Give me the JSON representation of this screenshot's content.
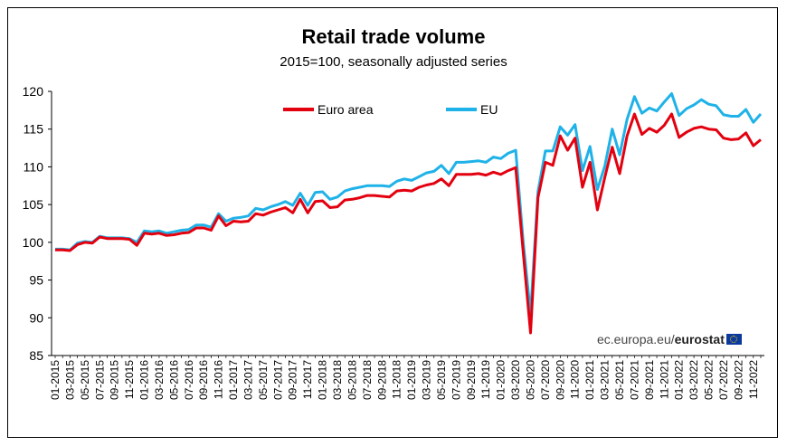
{
  "chart_data": {
    "type": "line",
    "title": "Retail trade volume",
    "subtitle": "2015=100, seasonally adjusted series",
    "ylim": [
      85,
      120
    ],
    "yticks": [
      85,
      90,
      95,
      100,
      105,
      110,
      115,
      120
    ],
    "xlabel": "",
    "ylabel": "",
    "grid": false,
    "legend": "top-center",
    "x_tick_labels": [
      "01-2015",
      "03-2015",
      "05-2015",
      "07-2015",
      "09-2015",
      "11-2015",
      "01-2016",
      "03-2016",
      "05-2016",
      "07-2016",
      "09-2016",
      "11-2016",
      "01-2017",
      "03-2017",
      "05-2017",
      "07-2017",
      "09-2017",
      "11-2017",
      "01-2018",
      "03-2018",
      "05-2018",
      "07-2018",
      "09-2018",
      "11-2018",
      "01-2019",
      "03-2019",
      "05-2019",
      "07-2019",
      "09-2019",
      "11-2019",
      "01-2020",
      "03-2020",
      "05-2020",
      "07-2020",
      "09-2020",
      "11-2020",
      "01-2021",
      "03-2021",
      "05-2021",
      "07-2021",
      "09-2021",
      "11-2021",
      "01-2022",
      "03-2022",
      "05-2022",
      "07-2022",
      "09-2022",
      "11-2022"
    ],
    "series": [
      {
        "name": "Euro area",
        "color": "#e3000f",
        "values": [
          99.0,
          99.0,
          98.9,
          99.7,
          100.0,
          99.9,
          100.7,
          100.5,
          100.5,
          100.5,
          100.4,
          99.6,
          101.2,
          101.1,
          101.2,
          100.9,
          101.0,
          101.2,
          101.3,
          101.9,
          101.9,
          101.6,
          103.5,
          102.2,
          102.8,
          102.7,
          102.8,
          103.8,
          103.6,
          104.0,
          104.3,
          104.6,
          103.9,
          105.7,
          103.9,
          105.4,
          105.5,
          104.6,
          104.7,
          105.6,
          105.7,
          105.9,
          106.2,
          106.2,
          106.1,
          106.0,
          106.8,
          106.9,
          106.8,
          107.3,
          107.6,
          107.8,
          108.4,
          107.5,
          109.0,
          109.0,
          109.0,
          109.1,
          108.9,
          109.3,
          109.0,
          109.5,
          109.9,
          98.8,
          88.0,
          105.9,
          110.6,
          110.2,
          114.1,
          112.2,
          113.8,
          107.3,
          110.6,
          104.3,
          108.6,
          112.6,
          109.1,
          114.1,
          117.0,
          114.3,
          115.1,
          114.6,
          115.5,
          117.0,
          113.9,
          114.6,
          115.1,
          115.3,
          115.0,
          114.9,
          113.8,
          113.6,
          113.7,
          114.5,
          112.8,
          113.6
        ]
      },
      {
        "name": "EU",
        "color": "#1fb2e8",
        "values": [
          99.1,
          99.1,
          99.0,
          99.9,
          100.1,
          100.0,
          100.8,
          100.6,
          100.6,
          100.6,
          100.5,
          100.0,
          101.5,
          101.4,
          101.5,
          101.2,
          101.4,
          101.6,
          101.7,
          102.3,
          102.3,
          102.0,
          103.8,
          102.8,
          103.2,
          103.3,
          103.5,
          104.5,
          104.3,
          104.7,
          105.0,
          105.4,
          104.9,
          106.5,
          104.9,
          106.6,
          106.7,
          105.7,
          106.0,
          106.8,
          107.1,
          107.3,
          107.5,
          107.5,
          107.5,
          107.4,
          108.1,
          108.4,
          108.2,
          108.7,
          109.2,
          109.4,
          110.2,
          109.1,
          110.6,
          110.6,
          110.7,
          110.8,
          110.6,
          111.3,
          111.1,
          111.8,
          112.2,
          100.2,
          90.5,
          106.7,
          112.1,
          112.1,
          115.3,
          114.2,
          115.6,
          109.5,
          112.7,
          107.0,
          110.1,
          115.0,
          111.6,
          116.3,
          119.3,
          117.1,
          117.8,
          117.4,
          118.6,
          119.7,
          116.8,
          117.7,
          118.2,
          118.9,
          118.3,
          118.1,
          116.9,
          116.7,
          116.7,
          117.6,
          115.9,
          117.0
        ]
      }
    ]
  },
  "source_prefix": "ec.europa.eu/",
  "source_brand": "eurostat",
  "flag_icon": "eu-flag-icon"
}
